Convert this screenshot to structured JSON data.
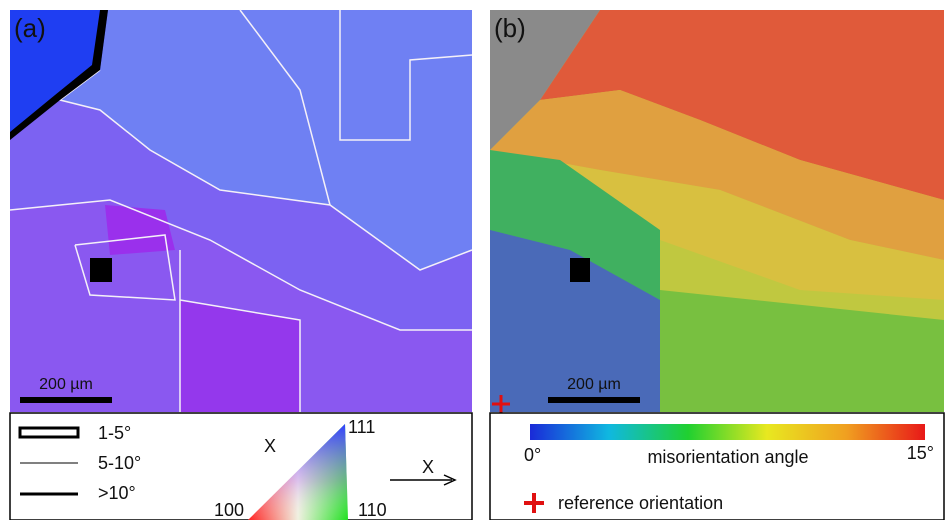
{
  "panel_a": {
    "label": "(a)",
    "scale_bar": "200 µm"
  },
  "panel_b": {
    "label": "(b)",
    "scale_bar": "200 µm"
  },
  "legend_a": {
    "boundaries": [
      "1-5°",
      "5-10°",
      ">10°"
    ],
    "ipf": {
      "axis": "X",
      "top": "111",
      "left": "100",
      "right": "110"
    },
    "direction": "X"
  },
  "legend_b": {
    "colorbar": {
      "min": "0°",
      "label": "misorientation angle",
      "max": "15°"
    },
    "reference": "reference orientation"
  }
}
